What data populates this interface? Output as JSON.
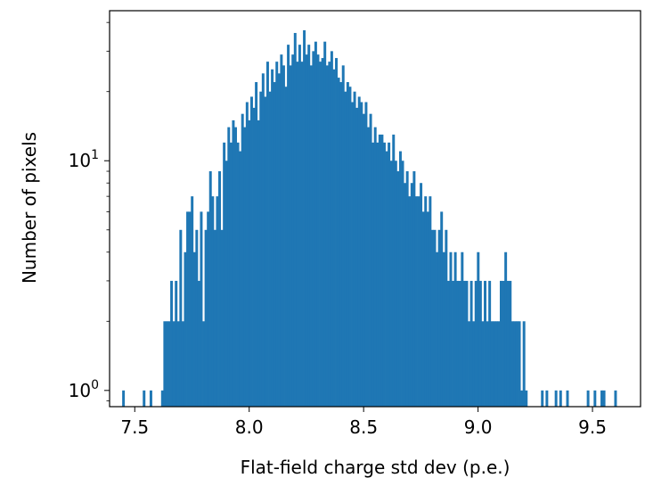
{
  "chart_data": {
    "type": "bar",
    "title": "",
    "xlabel": "Flat-field charge std dev (p.e.)",
    "ylabel": "Number of pixels",
    "xlim": [
      7.39,
      9.71
    ],
    "ylim": [
      0.85,
      45
    ],
    "yscale": "log",
    "grid": false,
    "legend": "none",
    "bar_color": "#1f77b4",
    "bin_width": 0.01,
    "x_ticks": [
      7.5,
      8.0,
      8.5,
      9.0,
      9.5
    ],
    "x_tick_labels": [
      "7.5",
      "8.0",
      "8.5",
      "9.0",
      "9.5"
    ],
    "y_ticks": [
      1,
      10
    ],
    "y_tick_labels": [
      {
        "base": "10",
        "exp": "0"
      },
      {
        "base": "10",
        "exp": "1"
      }
    ],
    "bins": [
      [
        7.45,
        1
      ],
      [
        7.54,
        1
      ],
      [
        7.57,
        1
      ],
      [
        7.62,
        1
      ],
      [
        7.63,
        2
      ],
      [
        7.64,
        2
      ],
      [
        7.65,
        2
      ],
      [
        7.66,
        3
      ],
      [
        7.67,
        2
      ],
      [
        7.68,
        3
      ],
      [
        7.69,
        2
      ],
      [
        7.7,
        5
      ],
      [
        7.71,
        2
      ],
      [
        7.72,
        4
      ],
      [
        7.73,
        6
      ],
      [
        7.74,
        6
      ],
      [
        7.75,
        7
      ],
      [
        7.76,
        4
      ],
      [
        7.77,
        5
      ],
      [
        7.78,
        3
      ],
      [
        7.79,
        6
      ],
      [
        7.8,
        2
      ],
      [
        7.81,
        5
      ],
      [
        7.82,
        6
      ],
      [
        7.83,
        9
      ],
      [
        7.84,
        7
      ],
      [
        7.85,
        5
      ],
      [
        7.86,
        7
      ],
      [
        7.87,
        9
      ],
      [
        7.88,
        5
      ],
      [
        7.89,
        12
      ],
      [
        7.9,
        10
      ],
      [
        7.91,
        14
      ],
      [
        7.92,
        12
      ],
      [
        7.93,
        15
      ],
      [
        7.94,
        14
      ],
      [
        7.95,
        12
      ],
      [
        7.96,
        11
      ],
      [
        7.97,
        16
      ],
      [
        7.98,
        14
      ],
      [
        7.99,
        18
      ],
      [
        8.0,
        15
      ],
      [
        8.01,
        19
      ],
      [
        8.02,
        17
      ],
      [
        8.03,
        22
      ],
      [
        8.04,
        15
      ],
      [
        8.05,
        20
      ],
      [
        8.06,
        24
      ],
      [
        8.07,
        19
      ],
      [
        8.08,
        27
      ],
      [
        8.09,
        20
      ],
      [
        8.1,
        25
      ],
      [
        8.11,
        22
      ],
      [
        8.12,
        27
      ],
      [
        8.13,
        24
      ],
      [
        8.14,
        29
      ],
      [
        8.15,
        26
      ],
      [
        8.16,
        21
      ],
      [
        8.17,
        32
      ],
      [
        8.18,
        26
      ],
      [
        8.19,
        29
      ],
      [
        8.2,
        36
      ],
      [
        8.21,
        27
      ],
      [
        8.22,
        32
      ],
      [
        8.23,
        27
      ],
      [
        8.24,
        37
      ],
      [
        8.25,
        29
      ],
      [
        8.26,
        32
      ],
      [
        8.27,
        26
      ],
      [
        8.28,
        30
      ],
      [
        8.29,
        33
      ],
      [
        8.3,
        29
      ],
      [
        8.31,
        27
      ],
      [
        8.32,
        28
      ],
      [
        8.33,
        33
      ],
      [
        8.34,
        26
      ],
      [
        8.35,
        27
      ],
      [
        8.36,
        30
      ],
      [
        8.37,
        25
      ],
      [
        8.38,
        28
      ],
      [
        8.39,
        23
      ],
      [
        8.4,
        22
      ],
      [
        8.41,
        26
      ],
      [
        8.42,
        20
      ],
      [
        8.43,
        22
      ],
      [
        8.44,
        21
      ],
      [
        8.45,
        18
      ],
      [
        8.46,
        20
      ],
      [
        8.47,
        17
      ],
      [
        8.48,
        19
      ],
      [
        8.49,
        18
      ],
      [
        8.5,
        16
      ],
      [
        8.51,
        18
      ],
      [
        8.52,
        14
      ],
      [
        8.53,
        16
      ],
      [
        8.54,
        12
      ],
      [
        8.55,
        14
      ],
      [
        8.56,
        12
      ],
      [
        8.57,
        13
      ],
      [
        8.58,
        13
      ],
      [
        8.59,
        12
      ],
      [
        8.6,
        11
      ],
      [
        8.61,
        12
      ],
      [
        8.62,
        10
      ],
      [
        8.63,
        13
      ],
      [
        8.64,
        10
      ],
      [
        8.65,
        9
      ],
      [
        8.66,
        11
      ],
      [
        8.67,
        10
      ],
      [
        8.68,
        8
      ],
      [
        8.69,
        9
      ],
      [
        8.7,
        7
      ],
      [
        8.71,
        8
      ],
      [
        8.72,
        9
      ],
      [
        8.73,
        7
      ],
      [
        8.74,
        7
      ],
      [
        8.75,
        8
      ],
      [
        8.76,
        6
      ],
      [
        8.77,
        7
      ],
      [
        8.78,
        6
      ],
      [
        8.79,
        7
      ],
      [
        8.8,
        5
      ],
      [
        8.81,
        5
      ],
      [
        8.82,
        4
      ],
      [
        8.83,
        5
      ],
      [
        8.84,
        6
      ],
      [
        8.85,
        4
      ],
      [
        8.86,
        5
      ],
      [
        8.87,
        3
      ],
      [
        8.88,
        4
      ],
      [
        8.89,
        3
      ],
      [
        8.9,
        4
      ],
      [
        8.91,
        3
      ],
      [
        8.92,
        3
      ],
      [
        8.93,
        4
      ],
      [
        8.94,
        3
      ],
      [
        8.95,
        3
      ],
      [
        8.96,
        2
      ],
      [
        8.97,
        3
      ],
      [
        8.98,
        2
      ],
      [
        8.99,
        3
      ],
      [
        9.0,
        4
      ],
      [
        9.01,
        3
      ],
      [
        9.02,
        2
      ],
      [
        9.03,
        3
      ],
      [
        9.04,
        2
      ],
      [
        9.05,
        3
      ],
      [
        9.06,
        2
      ],
      [
        9.07,
        2
      ],
      [
        9.08,
        2
      ],
      [
        9.09,
        2
      ],
      [
        9.1,
        3
      ],
      [
        9.11,
        3
      ],
      [
        9.12,
        4
      ],
      [
        9.13,
        3
      ],
      [
        9.14,
        3
      ],
      [
        9.15,
        2
      ],
      [
        9.16,
        2
      ],
      [
        9.17,
        2
      ],
      [
        9.18,
        2
      ],
      [
        9.19,
        1
      ],
      [
        9.2,
        2
      ],
      [
        9.21,
        1
      ],
      [
        9.28,
        1
      ],
      [
        9.3,
        1
      ],
      [
        9.34,
        1
      ],
      [
        9.36,
        1
      ],
      [
        9.39,
        1
      ],
      [
        9.48,
        1
      ],
      [
        9.51,
        1
      ],
      [
        9.54,
        1
      ],
      [
        9.55,
        1
      ],
      [
        9.6,
        1
      ]
    ]
  }
}
